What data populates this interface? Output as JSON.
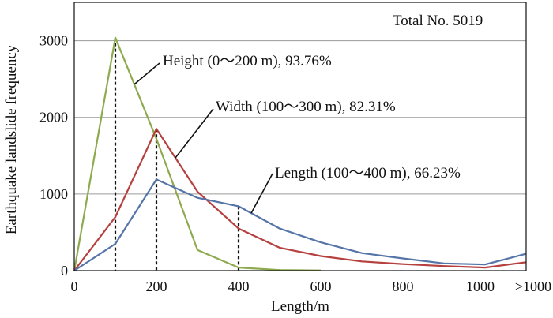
{
  "chart_data": {
    "type": "line",
    "title": "",
    "xlabel": "Length/m",
    "ylabel": "Earthquake landslide frequency",
    "x_ticks": [
      "0",
      "200",
      "400",
      "600",
      "800",
      "1000",
      ">1000"
    ],
    "y_ticks": [
      "0",
      "1000",
      "2000",
      "3000"
    ],
    "ylim": [
      0,
      3500
    ],
    "xlim": [
      0,
      1100
    ],
    "grid": "horizontal",
    "total_label": "Total No. 5019",
    "series": [
      {
        "key": "height",
        "color": "#8daa4e",
        "points": [
          [
            0,
            0
          ],
          [
            100,
            3040
          ],
          [
            200,
            1720
          ],
          [
            300,
            270
          ],
          [
            400,
            40
          ],
          [
            500,
            8
          ],
          [
            600,
            3
          ]
        ]
      },
      {
        "key": "width",
        "color": "#b5403e",
        "points": [
          [
            0,
            0
          ],
          [
            100,
            700
          ],
          [
            200,
            1850
          ],
          [
            300,
            1030
          ],
          [
            400,
            550
          ],
          [
            500,
            300
          ],
          [
            600,
            190
          ],
          [
            700,
            120
          ],
          [
            800,
            85
          ],
          [
            900,
            60
          ],
          [
            1000,
            40
          ],
          [
            1100,
            110
          ]
        ]
      },
      {
        "key": "length",
        "color": "#5575a8",
        "points": [
          [
            0,
            0
          ],
          [
            100,
            350
          ],
          [
            200,
            1190
          ],
          [
            300,
            950
          ],
          [
            400,
            840
          ],
          [
            500,
            550
          ],
          [
            600,
            370
          ],
          [
            700,
            230
          ],
          [
            800,
            160
          ],
          [
            900,
            95
          ],
          [
            1000,
            80
          ],
          [
            1100,
            220
          ]
        ]
      }
    ],
    "annotations": [
      {
        "key": "height",
        "text": "Height (0～200 m), 93.76%",
        "x_value": 100,
        "drop_y": 3040
      },
      {
        "key": "width",
        "text": "Width (100～300 m), 82.31%",
        "x_value": 200,
        "drop_y": 1850
      },
      {
        "key": "length",
        "text": "Length (100～400 m), 66.23%",
        "x_value": 400,
        "drop_y": 840
      }
    ]
  }
}
